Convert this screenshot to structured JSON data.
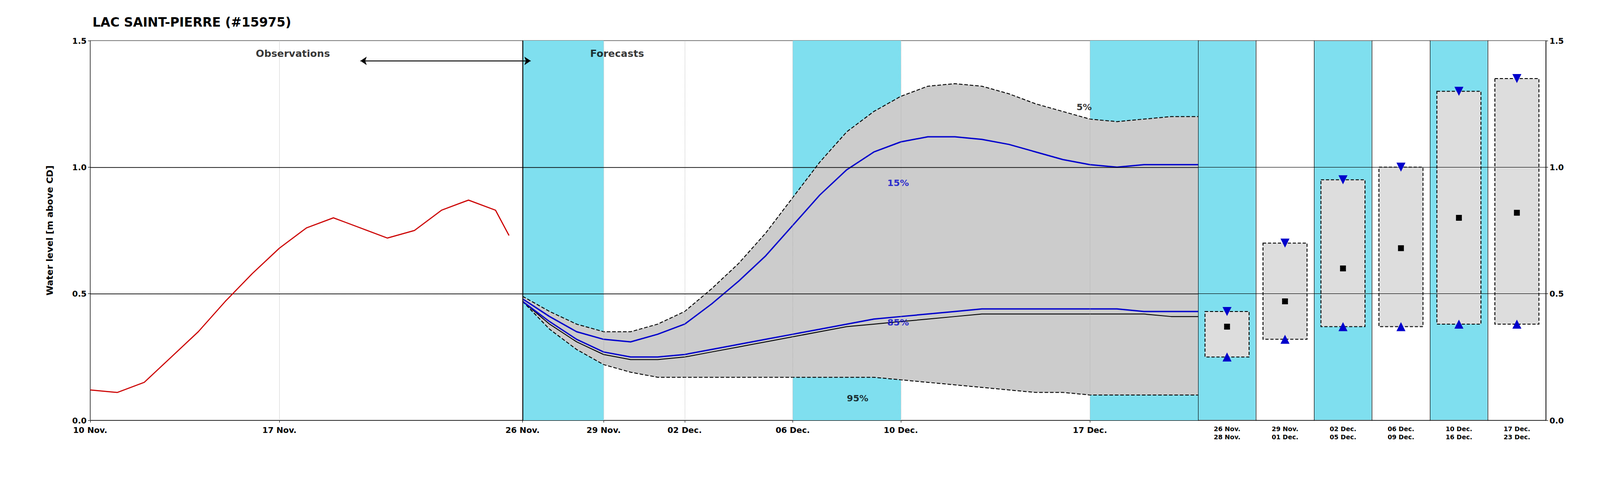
{
  "chart_data": [
    {
      "type": "line",
      "title": "LAC SAINT-PIERRE (#15975)",
      "ylabel": "Water level [m above CD]",
      "xlim": [
        0,
        41
      ],
      "xticks": [
        {
          "value": 0,
          "label": "10 Nov."
        },
        {
          "value": 7,
          "label": "17 Nov."
        },
        {
          "value": 16,
          "label": "26 Nov."
        },
        {
          "value": 19,
          "label": "29 Nov."
        },
        {
          "value": 22,
          "label": "02 Dec."
        },
        {
          "value": 26,
          "label": "06 Dec."
        },
        {
          "value": 30,
          "label": "10 Dec."
        },
        {
          "value": 37,
          "label": "17 Dec."
        }
      ],
      "ylim": [
        0.0,
        1.5
      ],
      "yticks": [
        {
          "value": 0.0,
          "label": "0.0"
        },
        0.5,
        {
          "value": 1.0,
          "label": "1.0"
        },
        1.5
      ],
      "grid": true,
      "bands": [
        [
          16,
          19
        ],
        [
          26,
          30
        ],
        [
          37,
          41
        ]
      ],
      "band_color": "#7FDFEF",
      "hlines": [
        0.5,
        1.0
      ],
      "vline": 16,
      "series": [
        {
          "type": "area",
          "x": [
            16,
            17,
            18,
            19,
            20,
            21,
            22,
            23,
            24,
            25,
            26,
            27,
            28,
            29,
            30,
            31,
            32,
            33,
            34,
            35,
            36,
            37,
            38,
            39,
            40,
            41
          ],
          "upper": [
            0.49,
            0.43,
            0.38,
            0.35,
            0.35,
            0.38,
            0.43,
            0.52,
            0.62,
            0.74,
            0.88,
            1.02,
            1.14,
            1.22,
            1.28,
            1.32,
            1.33,
            1.32,
            1.29,
            1.25,
            1.22,
            1.19,
            1.18,
            1.19,
            1.2,
            1.2
          ],
          "lower": [
            0.47,
            0.36,
            0.28,
            0.22,
            0.19,
            0.17,
            0.17,
            0.17,
            0.17,
            0.17,
            0.17,
            0.17,
            0.17,
            0.17,
            0.16,
            0.15,
            0.14,
            0.13,
            0.12,
            0.11,
            0.11,
            0.1,
            0.1,
            0.1,
            0.1,
            0.1
          ],
          "color": "#cccccc"
        },
        {
          "type": "line",
          "x": [
            16,
            17,
            18,
            19,
            20,
            21,
            22,
            23,
            24,
            25,
            26,
            27,
            28,
            29,
            30,
            31,
            32,
            33,
            34,
            35,
            36,
            37,
            38,
            39,
            40,
            41
          ],
          "values": [
            0.49,
            0.43,
            0.38,
            0.35,
            0.35,
            0.38,
            0.43,
            0.52,
            0.62,
            0.74,
            0.88,
            1.02,
            1.14,
            1.22,
            1.28,
            1.32,
            1.33,
            1.32,
            1.29,
            1.25,
            1.22,
            1.19,
            1.18,
            1.19,
            1.2,
            1.2
          ],
          "color": "#000000",
          "line_style": "dashed"
        },
        {
          "type": "line",
          "x": [
            16,
            17,
            18,
            19,
            20,
            21,
            22,
            23,
            24,
            25,
            26,
            27,
            28,
            29,
            30,
            31,
            32,
            33,
            34,
            35,
            36,
            37,
            38,
            39,
            40,
            41
          ],
          "values": [
            0.47,
            0.36,
            0.28,
            0.22,
            0.19,
            0.17,
            0.17,
            0.17,
            0.17,
            0.17,
            0.17,
            0.17,
            0.17,
            0.17,
            0.16,
            0.15,
            0.14,
            0.13,
            0.12,
            0.11,
            0.11,
            0.1,
            0.1,
            0.1,
            0.1,
            0.1
          ],
          "color": "#000000",
          "line_style": "dashed"
        },
        {
          "type": "line",
          "x": [
            16,
            17,
            18,
            19,
            20,
            21,
            22,
            23,
            24,
            25,
            26,
            27,
            28,
            29,
            30,
            31,
            32,
            33,
            34,
            35,
            36,
            37,
            38,
            39,
            40,
            41
          ],
          "values": [
            0.48,
            0.41,
            0.35,
            0.32,
            0.31,
            0.34,
            0.38,
            0.46,
            0.55,
            0.65,
            0.77,
            0.89,
            0.99,
            1.06,
            1.1,
            1.12,
            1.12,
            1.11,
            1.09,
            1.06,
            1.03,
            1.01,
            1.0,
            1.01,
            1.01,
            1.01
          ],
          "color": "#0000cc",
          "line_style": "solid"
        },
        {
          "type": "line",
          "x": [
            16,
            17,
            18,
            19,
            20,
            21,
            22,
            23,
            24,
            25,
            26,
            27,
            28,
            29,
            30,
            31,
            32,
            33,
            34,
            35,
            36,
            37,
            38,
            39,
            40,
            41
          ],
          "values": [
            0.47,
            0.39,
            0.32,
            0.27,
            0.25,
            0.25,
            0.26,
            0.28,
            0.3,
            0.32,
            0.34,
            0.36,
            0.38,
            0.4,
            0.41,
            0.42,
            0.43,
            0.44,
            0.44,
            0.44,
            0.44,
            0.44,
            0.44,
            0.43,
            0.43,
            0.43
          ],
          "color": "#0000cc",
          "line_style": "solid"
        },
        {
          "type": "line",
          "x": [
            16,
            17,
            18,
            19,
            20,
            21,
            22,
            23,
            24,
            25,
            26,
            27,
            28,
            29,
            30,
            31,
            32,
            33,
            34,
            35,
            36,
            37,
            38,
            39,
            40,
            41
          ],
          "values": [
            0.47,
            0.38,
            0.31,
            0.26,
            0.24,
            0.24,
            0.25,
            0.27,
            0.29,
            0.31,
            0.33,
            0.35,
            0.37,
            0.38,
            0.39,
            0.4,
            0.41,
            0.42,
            0.42,
            0.42,
            0.42,
            0.42,
            0.42,
            0.42,
            0.41,
            0.41
          ],
          "color": "#000000",
          "line_style": "solid"
        },
        {
          "type": "line",
          "x": [
            0,
            1,
            2,
            3,
            4,
            5,
            6,
            7,
            8,
            9,
            10,
            11,
            12,
            13,
            14,
            15,
            15.5
          ],
          "values": [
            0.12,
            0.11,
            0.15,
            0.25,
            0.35,
            0.47,
            0.58,
            0.68,
            0.76,
            0.8,
            0.76,
            0.72,
            0.75,
            0.83,
            0.87,
            0.83,
            0.73
          ],
          "color": "#cc0000",
          "line_style": "solid"
        }
      ],
      "line_labels": [
        {
          "text": "5%",
          "x": 36.5,
          "y": 1.22,
          "color": "#000000"
        },
        {
          "text": "15%",
          "x": 29.5,
          "y": 0.92,
          "color": "#0000cc"
        },
        {
          "text": "85%",
          "x": 29.5,
          "y": 0.37,
          "color": "#0000cc"
        },
        {
          "text": "95%",
          "x": 28.0,
          "y": 0.07,
          "color": "#000000"
        }
      ],
      "annotations": [
        {
          "text": "Observations",
          "x": 7.5,
          "y": 1.43
        },
        {
          "text": "Forecasts",
          "x": 19.5,
          "y": 1.43
        }
      ],
      "arrows": [
        {
          "x": [
            10,
            16.3
          ],
          "y": [
            1.42,
            1.42
          ]
        }
      ]
    },
    {
      "type": "percentile_boxes",
      "categories": [
        "26 Nov.\n28 Nov.",
        "29 Nov.\n01 Dec.",
        "02 Dec.\n05 Dec.",
        "06 Dec.\n09 Dec.",
        "10 Dec.\n16 Dec.",
        "17 Dec.\n23 Dec."
      ],
      "ylim": [
        0.0,
        1.5
      ],
      "yticks": [
        {
          "value": 0.0,
          "label": "0.0"
        },
        0.5,
        {
          "value": 1.0,
          "label": "1.0"
        },
        1.5
      ],
      "y2lim": [
        0.0,
        1.5
      ],
      "y2ticks": [
        {
          "value": 0.0,
          "label": "0.0"
        },
        0.5,
        {
          "value": 1.0,
          "label": "1.0"
        },
        1.5
      ],
      "tick_labels": "x",
      "grid": true,
      "hlines": [
        0.5,
        1.0
      ],
      "shaded": [
        true,
        false,
        true,
        false,
        true,
        false
      ],
      "band_color": "#7FDFEF",
      "box_color": "#dddddd",
      "series": [
        {
          "values": [
            0.43,
            0.7,
            0.95,
            1.0,
            1.3,
            1.35
          ],
          "marker": "triangle-down",
          "color": "#0000cc"
        },
        {
          "values": [
            0.37,
            0.47,
            0.6,
            0.68,
            0.8,
            0.82
          ],
          "marker": "square",
          "color": "#000000"
        },
        {
          "values": [
            0.25,
            0.32,
            0.37,
            0.37,
            0.38,
            0.38
          ],
          "marker": "triangle-up",
          "color": "#0000cc"
        }
      ]
    }
  ]
}
